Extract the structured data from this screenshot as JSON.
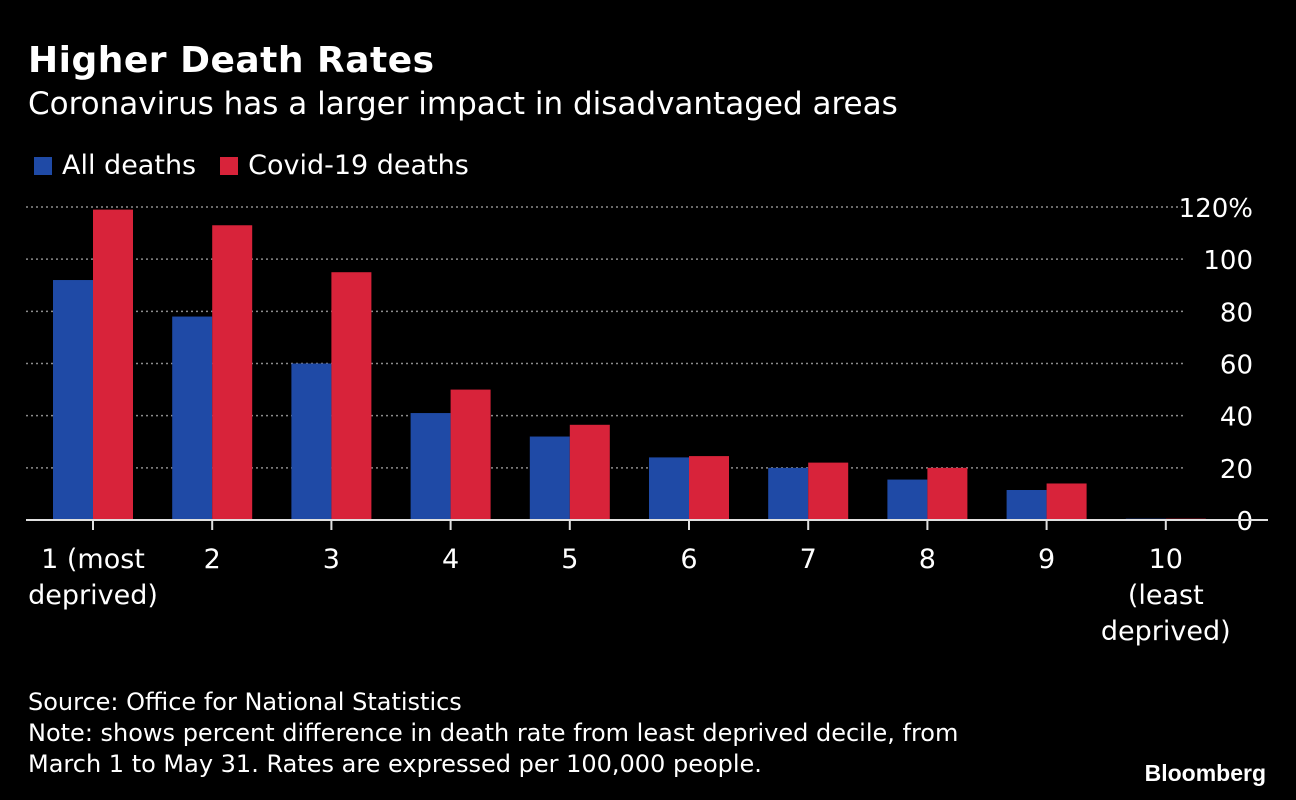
{
  "header": {
    "title": "Higher Death Rates",
    "subtitle": "Coronavirus has a larger impact in disadvantaged areas"
  },
  "footer": {
    "source": "Source: Office for National Statistics",
    "note_line1": "Note: shows percent difference in death rate from least deprived decile, from",
    "note_line2": "March 1 to May 31. Rates are expressed per 100,000 people.",
    "brand": "Bloomberg"
  },
  "colors": {
    "all_deaths": "#1f4aa6",
    "covid_deaths": "#d8233a",
    "grid": "#8c8c8c",
    "axis_text": "#ffffff"
  },
  "chart_data": {
    "type": "bar",
    "categories": [
      [
        "1 (most",
        "deprived)"
      ],
      [
        "2"
      ],
      [
        "3"
      ],
      [
        "4"
      ],
      [
        "5"
      ],
      [
        "6"
      ],
      [
        "7"
      ],
      [
        "8"
      ],
      [
        "9"
      ],
      [
        "10",
        "(least",
        "deprived)"
      ]
    ],
    "series": [
      {
        "name": "All deaths",
        "values": [
          92,
          78,
          60,
          41,
          32,
          24,
          20,
          15.5,
          11.5,
          0.5
        ]
      },
      {
        "name": "Covid-19 deaths",
        "values": [
          119,
          113,
          95,
          50,
          36.5,
          24.5,
          22,
          20,
          14,
          0.5
        ]
      }
    ],
    "yticks": [
      "120%",
      "100",
      "80",
      "60",
      "40",
      "20",
      "0"
    ],
    "ytick_values": [
      120,
      100,
      80,
      60,
      40,
      20,
      0
    ],
    "ylim": [
      0,
      120
    ],
    "grid": true,
    "legend_position": "top-left",
    "yaxis_position": "right"
  }
}
